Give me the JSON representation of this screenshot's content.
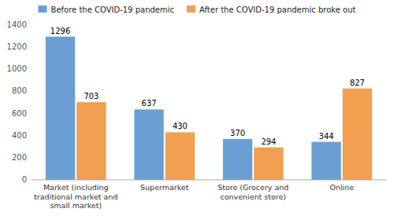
{
  "chart_data": {
    "type": "bar",
    "categories": [
      "Market (including\ntraditional market and\nsmall market)",
      "Supermarket",
      "Store (Grocery and\nconvenient store)",
      "Online"
    ],
    "series": [
      {
        "name": "Before the COVID-19 pandemic",
        "color": "#6B9FD4",
        "values": [
          1296,
          637,
          370,
          344
        ]
      },
      {
        "name": "After the COVID-19 pandemic broke out",
        "color": "#F0A050",
        "values": [
          703,
          430,
          294,
          827
        ]
      }
    ],
    "ylim": [
      0,
      1400
    ],
    "yticks": [
      0,
      200,
      400,
      600,
      800,
      1000,
      1200,
      1400
    ],
    "grid": false,
    "legend": "top",
    "data_labels": true
  }
}
